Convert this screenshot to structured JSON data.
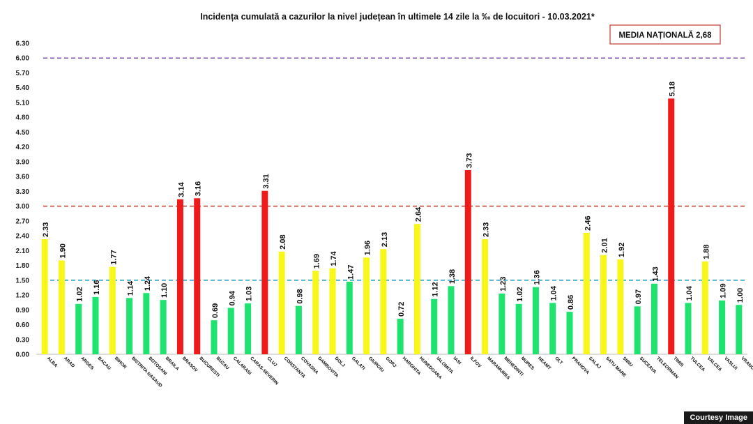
{
  "chart_data": {
    "type": "bar",
    "title": "Incidența cumulată a cazurilor la nivel județean în ultimele 14 zile la ‰ de locuitori - 10.03.2021*",
    "national_average_label": "MEDIA NAȚIONALĂ  2,68",
    "ylim": [
      0,
      6.3
    ],
    "yticks": [
      "0.00",
      "0.30",
      "0.60",
      "0.90",
      "1.20",
      "1.50",
      "1.80",
      "2.10",
      "2.40",
      "2.70",
      "3.00",
      "3.30",
      "3.60",
      "3.90",
      "4.20",
      "4.50",
      "4.80",
      "5.10",
      "5.40",
      "5.70",
      "6.00",
      "6.30"
    ],
    "thresholds": [
      {
        "value": 6.0,
        "color": "#7b4fa8"
      },
      {
        "value": 3.0,
        "color": "#c0392b"
      },
      {
        "value": 1.5,
        "color": "#2aa0c8"
      }
    ],
    "colors": {
      "green": "#1ee36f",
      "yellow": "#f7f71a",
      "red": "#ef1a1a"
    },
    "categories": [
      "ALBA",
      "ARAD",
      "ARGES",
      "BACAU",
      "BIHOR",
      "BISTRITA NASAUD",
      "BOTOSANI",
      "BRAILA",
      "BRASOV",
      "BUCURESTI",
      "BUZAU",
      "CALARASI",
      "CARAS-SEVERIN",
      "CLUJ",
      "CONSTANTA",
      "COVASNA",
      "DAMBOVITA",
      "DOLJ",
      "GALATI",
      "GIURGIU",
      "GORJ",
      "HARGHITA",
      "HUNEDOARA",
      "IALOMITA",
      "IASI",
      "ILFOV",
      "MARAMURES",
      "MEHEDINTI",
      "MURES",
      "NEAMT",
      "OLT",
      "PRAHOVA",
      "SALAJ",
      "SATU MARE",
      "SIBIU",
      "SUCEAVA",
      "TELEORMAN",
      "TIMIS",
      "TULCEA",
      "VALCEA",
      "VASLUI",
      "VRANCEA"
    ],
    "values": [
      2.33,
      1.9,
      1.02,
      1.16,
      1.77,
      1.14,
      1.24,
      1.1,
      3.14,
      3.16,
      0.69,
      0.94,
      1.03,
      3.31,
      2.08,
      0.98,
      1.69,
      1.74,
      1.47,
      1.96,
      2.13,
      0.72,
      2.64,
      1.12,
      1.38,
      3.73,
      2.33,
      1.23,
      1.02,
      1.36,
      1.04,
      0.86,
      2.46,
      2.01,
      1.92,
      0.97,
      1.43,
      5.18,
      1.04,
      1.88,
      1.09,
      1.0
    ],
    "value_labels": [
      "2.33",
      "1.90",
      "1.02",
      "1.16",
      "1.77",
      "1.14",
      "1.24",
      "1.10",
      "3.14",
      "3.16",
      "0.69",
      "0.94",
      "1.03",
      "3.31",
      "2.08",
      "0.98",
      "1.69",
      "1.74",
      "1.47",
      "1.96",
      "2.13",
      "0.72",
      "2.64",
      "1.12",
      "1.38",
      "3.73",
      "2.33",
      "1.23",
      "1.02",
      "1.36",
      "1.04",
      "0.86",
      "2.46",
      "2.01",
      "1.92",
      "0.97",
      "1.43",
      "5.18",
      "1.04",
      "1.88",
      "1.09",
      "1.00"
    ]
  },
  "credit": "Courtesy Image"
}
